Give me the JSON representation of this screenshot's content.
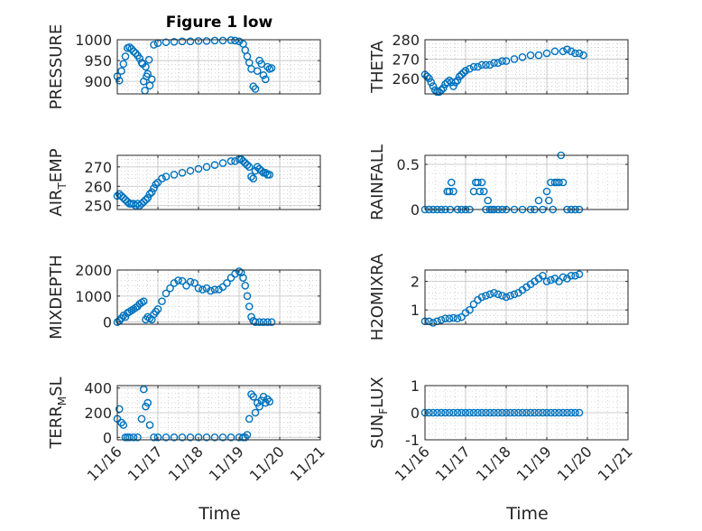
{
  "figure": {
    "title": "Figure 1 low"
  },
  "colors": {
    "marker": "#0072BD",
    "axis": "#262626",
    "grid": "#b4b4b4"
  },
  "x_axis": {
    "label": "Time",
    "ticks": [
      16,
      17,
      18,
      19,
      20,
      21
    ],
    "tick_labels": [
      "11/16",
      "11/17",
      "11/18",
      "11/19",
      "11/20",
      "11/21"
    ],
    "xlim": [
      16,
      21
    ]
  },
  "chart_data": [
    {
      "type": "scatter",
      "ylabel": "PRESSURE",
      "ylim": [
        870,
        1000
      ],
      "yticks": [
        900,
        950,
        1000
      ],
      "ytick_labels": [
        "900",
        "950",
        "1000"
      ],
      "x": [
        16.0,
        16.05,
        16.1,
        16.15,
        16.2,
        16.25,
        16.3,
        16.35,
        16.4,
        16.45,
        16.5,
        16.55,
        16.6,
        16.62,
        16.65,
        16.68,
        16.7,
        16.72,
        16.75,
        16.78,
        16.8,
        16.85,
        16.9,
        17.0,
        17.2,
        17.4,
        17.6,
        17.8,
        18.0,
        18.2,
        18.4,
        18.6,
        18.8,
        18.9,
        19.0,
        19.1,
        19.15,
        19.2,
        19.25,
        19.3,
        19.35,
        19.4,
        19.45,
        19.5,
        19.55,
        19.6,
        19.65,
        19.7,
        19.75,
        19.8
      ],
      "y": [
        912,
        902,
        925,
        942,
        960,
        980,
        982,
        978,
        972,
        968,
        962,
        955,
        945,
        942,
        900,
        878,
        935,
        912,
        918,
        952,
        890,
        905,
        988,
        992,
        994,
        995,
        996,
        996,
        997,
        997,
        998,
        998,
        999,
        998,
        996,
        990,
        975,
        960,
        945,
        930,
        888,
        882,
        925,
        950,
        942,
        915,
        905,
        935,
        930,
        932
      ]
    },
    {
      "type": "scatter",
      "ylabel": "THETA",
      "ylim": [
        252,
        280
      ],
      "yticks": [
        260,
        270,
        280
      ],
      "ytick_labels": [
        "260",
        "270",
        "280"
      ],
      "x": [
        16.0,
        16.05,
        16.1,
        16.15,
        16.2,
        16.25,
        16.3,
        16.35,
        16.4,
        16.45,
        16.5,
        16.55,
        16.6,
        16.65,
        16.7,
        16.75,
        16.8,
        16.85,
        16.9,
        16.95,
        17.0,
        17.1,
        17.2,
        17.3,
        17.4,
        17.5,
        17.6,
        17.7,
        17.8,
        17.9,
        18.0,
        18.2,
        18.4,
        18.6,
        18.8,
        19.0,
        19.2,
        19.4,
        19.5,
        19.6,
        19.7,
        19.8,
        19.9
      ],
      "y": [
        262,
        261,
        260,
        258,
        256,
        254,
        253,
        253,
        254,
        255,
        257,
        258,
        259,
        258,
        256,
        258,
        259,
        261,
        262,
        263,
        264,
        265,
        266,
        266,
        267,
        267,
        267,
        268,
        268,
        269,
        269,
        270,
        271,
        272,
        272,
        273,
        274,
        274,
        275,
        274,
        273,
        273,
        272
      ]
    },
    {
      "type": "scatter",
      "ylabel": "AIR_TEMP",
      "ylim": [
        248,
        276
      ],
      "yticks": [
        250,
        260,
        270
      ],
      "ytick_labels": [
        "250",
        "260",
        "270"
      ],
      "x": [
        16.0,
        16.05,
        16.1,
        16.15,
        16.2,
        16.25,
        16.3,
        16.35,
        16.4,
        16.45,
        16.5,
        16.55,
        16.6,
        16.65,
        16.7,
        16.75,
        16.8,
        16.85,
        16.9,
        16.95,
        17.0,
        17.1,
        17.2,
        17.4,
        17.6,
        17.8,
        18.0,
        18.2,
        18.4,
        18.6,
        18.8,
        18.9,
        19.0,
        19.05,
        19.1,
        19.15,
        19.2,
        19.25,
        19.3,
        19.35,
        19.4,
        19.45,
        19.5,
        19.55,
        19.6,
        19.65,
        19.7,
        19.75
      ],
      "y": [
        255,
        256,
        255,
        254,
        253,
        252,
        251,
        251,
        251,
        250,
        251,
        250,
        251,
        252,
        253,
        254,
        256,
        257,
        259,
        261,
        262,
        264,
        265,
        266,
        267,
        268,
        269,
        270,
        271,
        272,
        273,
        273,
        274,
        274,
        273,
        272,
        271,
        270,
        265,
        264,
        268,
        270,
        269,
        268,
        267,
        267,
        266,
        266
      ]
    },
    {
      "type": "scatter",
      "ylabel": "RAINFALL",
      "ylim": [
        0,
        0.6
      ],
      "yticks": [
        0,
        0.5
      ],
      "ytick_labels": [
        "0",
        "0.5"
      ],
      "x": [
        16.0,
        16.1,
        16.2,
        16.3,
        16.4,
        16.5,
        16.55,
        16.6,
        16.62,
        16.65,
        16.7,
        16.8,
        16.9,
        17.0,
        17.1,
        17.2,
        17.25,
        17.3,
        17.35,
        17.4,
        17.45,
        17.5,
        17.55,
        17.6,
        17.65,
        17.7,
        17.8,
        17.9,
        18.0,
        18.2,
        18.4,
        18.6,
        18.7,
        18.8,
        18.9,
        19.0,
        19.05,
        19.1,
        19.15,
        19.2,
        19.25,
        19.3,
        19.35,
        19.4,
        19.5,
        19.6,
        19.7,
        19.8
      ],
      "y": [
        0,
        0,
        0,
        0,
        0,
        0,
        0.2,
        0.2,
        0,
        0.3,
        0.2,
        0,
        0,
        0,
        0,
        0.2,
        0.3,
        0.3,
        0.2,
        0.3,
        0.2,
        0,
        0.1,
        0,
        0,
        0,
        0,
        0,
        0,
        0,
        0,
        0,
        0,
        0.1,
        0,
        0.2,
        0.1,
        0.3,
        0,
        0.3,
        0.3,
        0.3,
        0.6,
        0.3,
        0,
        0,
        0,
        0
      ]
    },
    {
      "type": "scatter",
      "ylabel": "MIXDEPTH",
      "ylim": [
        -80,
        2000
      ],
      "yticks": [
        0,
        1000,
        2000
      ],
      "ytick_labels": [
        "0",
        "1000",
        "2000"
      ],
      "x": [
        16.0,
        16.05,
        16.1,
        16.15,
        16.2,
        16.25,
        16.3,
        16.35,
        16.4,
        16.45,
        16.5,
        16.55,
        16.6,
        16.65,
        16.7,
        16.75,
        16.8,
        16.85,
        16.9,
        16.95,
        17.0,
        17.1,
        17.2,
        17.3,
        17.4,
        17.5,
        17.6,
        17.7,
        17.8,
        17.9,
        18.0,
        18.1,
        18.2,
        18.3,
        18.4,
        18.5,
        18.6,
        18.7,
        18.8,
        18.9,
        19.0,
        19.05,
        19.1,
        19.15,
        19.2,
        19.25,
        19.3,
        19.35,
        19.4,
        19.5,
        19.6,
        19.7,
        19.8
      ],
      "y": [
        0,
        50,
        150,
        250,
        200,
        350,
        400,
        450,
        500,
        550,
        600,
        700,
        750,
        800,
        100,
        200,
        150,
        100,
        300,
        400,
        500,
        800,
        1100,
        1300,
        1500,
        1600,
        1580,
        1400,
        1550,
        1500,
        1300,
        1250,
        1300,
        1200,
        1250,
        1250,
        1350,
        1500,
        1700,
        1850,
        1950,
        1900,
        1700,
        1400,
        1000,
        600,
        200,
        50,
        0,
        0,
        0,
        0,
        0
      ]
    },
    {
      "type": "scatter",
      "ylabel": "H2OMIXRA",
      "ylim": [
        0.5,
        2.4
      ],
      "yticks": [
        1,
        2
      ],
      "ytick_labels": [
        "1",
        "2"
      ],
      "x": [
        16.0,
        16.1,
        16.2,
        16.3,
        16.4,
        16.5,
        16.6,
        16.7,
        16.8,
        16.9,
        17.0,
        17.1,
        17.2,
        17.3,
        17.4,
        17.5,
        17.6,
        17.7,
        17.8,
        17.9,
        18.0,
        18.1,
        18.2,
        18.3,
        18.4,
        18.5,
        18.6,
        18.7,
        18.8,
        18.9,
        19.0,
        19.1,
        19.2,
        19.3,
        19.4,
        19.5,
        19.6,
        19.7,
        19.8
      ],
      "y": [
        0.6,
        0.6,
        0.55,
        0.6,
        0.65,
        0.7,
        0.7,
        0.72,
        0.7,
        0.75,
        0.9,
        1.0,
        1.2,
        1.35,
        1.45,
        1.5,
        1.55,
        1.6,
        1.55,
        1.5,
        1.45,
        1.5,
        1.55,
        1.6,
        1.7,
        1.8,
        1.9,
        2.0,
        2.1,
        2.2,
        2.0,
        2.05,
        2.1,
        2.0,
        2.15,
        2.1,
        2.2,
        2.2,
        2.25
      ]
    },
    {
      "type": "scatter",
      "ylabel": "TERR_MSL",
      "ylim": [
        -20,
        420
      ],
      "yticks": [
        0,
        200,
        400
      ],
      "ytick_labels": [
        "0",
        "200",
        "400"
      ],
      "x": [
        16.0,
        16.05,
        16.1,
        16.15,
        16.2,
        16.25,
        16.3,
        16.4,
        16.5,
        16.6,
        16.65,
        16.7,
        16.75,
        16.8,
        16.9,
        17.0,
        17.2,
        17.4,
        17.6,
        17.8,
        18.0,
        18.2,
        18.4,
        18.6,
        18.8,
        19.0,
        19.1,
        19.15,
        19.2,
        19.25,
        19.3,
        19.35,
        19.4,
        19.45,
        19.5,
        19.55,
        19.6,
        19.65,
        19.7,
        19.75
      ],
      "y": [
        150,
        230,
        120,
        100,
        0,
        0,
        0,
        0,
        0,
        150,
        390,
        250,
        280,
        100,
        0,
        0,
        0,
        0,
        0,
        0,
        0,
        0,
        0,
        0,
        0,
        0,
        0,
        0,
        20,
        150,
        350,
        330,
        200,
        280,
        250,
        300,
        330,
        280,
        310,
        290
      ]
    },
    {
      "type": "scatter",
      "ylabel": "SUN_FLUX",
      "ylim": [
        -1,
        1
      ],
      "yticks": [
        -1,
        0,
        1
      ],
      "ytick_labels": [
        "-1",
        "0",
        "1"
      ],
      "x": [
        16.0,
        16.1,
        16.2,
        16.3,
        16.4,
        16.5,
        16.6,
        16.7,
        16.8,
        16.9,
        17.0,
        17.1,
        17.2,
        17.3,
        17.4,
        17.5,
        17.6,
        17.7,
        17.8,
        17.9,
        18.0,
        18.1,
        18.2,
        18.3,
        18.4,
        18.5,
        18.6,
        18.7,
        18.8,
        18.9,
        19.0,
        19.1,
        19.2,
        19.3,
        19.4,
        19.5,
        19.6,
        19.7,
        19.8
      ],
      "y": [
        0,
        0,
        0,
        0,
        0,
        0,
        0,
        0,
        0,
        0,
        0,
        0,
        0,
        0,
        0,
        0,
        0,
        0,
        0,
        0,
        0,
        0,
        0,
        0,
        0,
        0,
        0,
        0,
        0,
        0,
        0,
        0,
        0,
        0,
        0,
        0,
        0,
        0,
        0
      ]
    }
  ]
}
